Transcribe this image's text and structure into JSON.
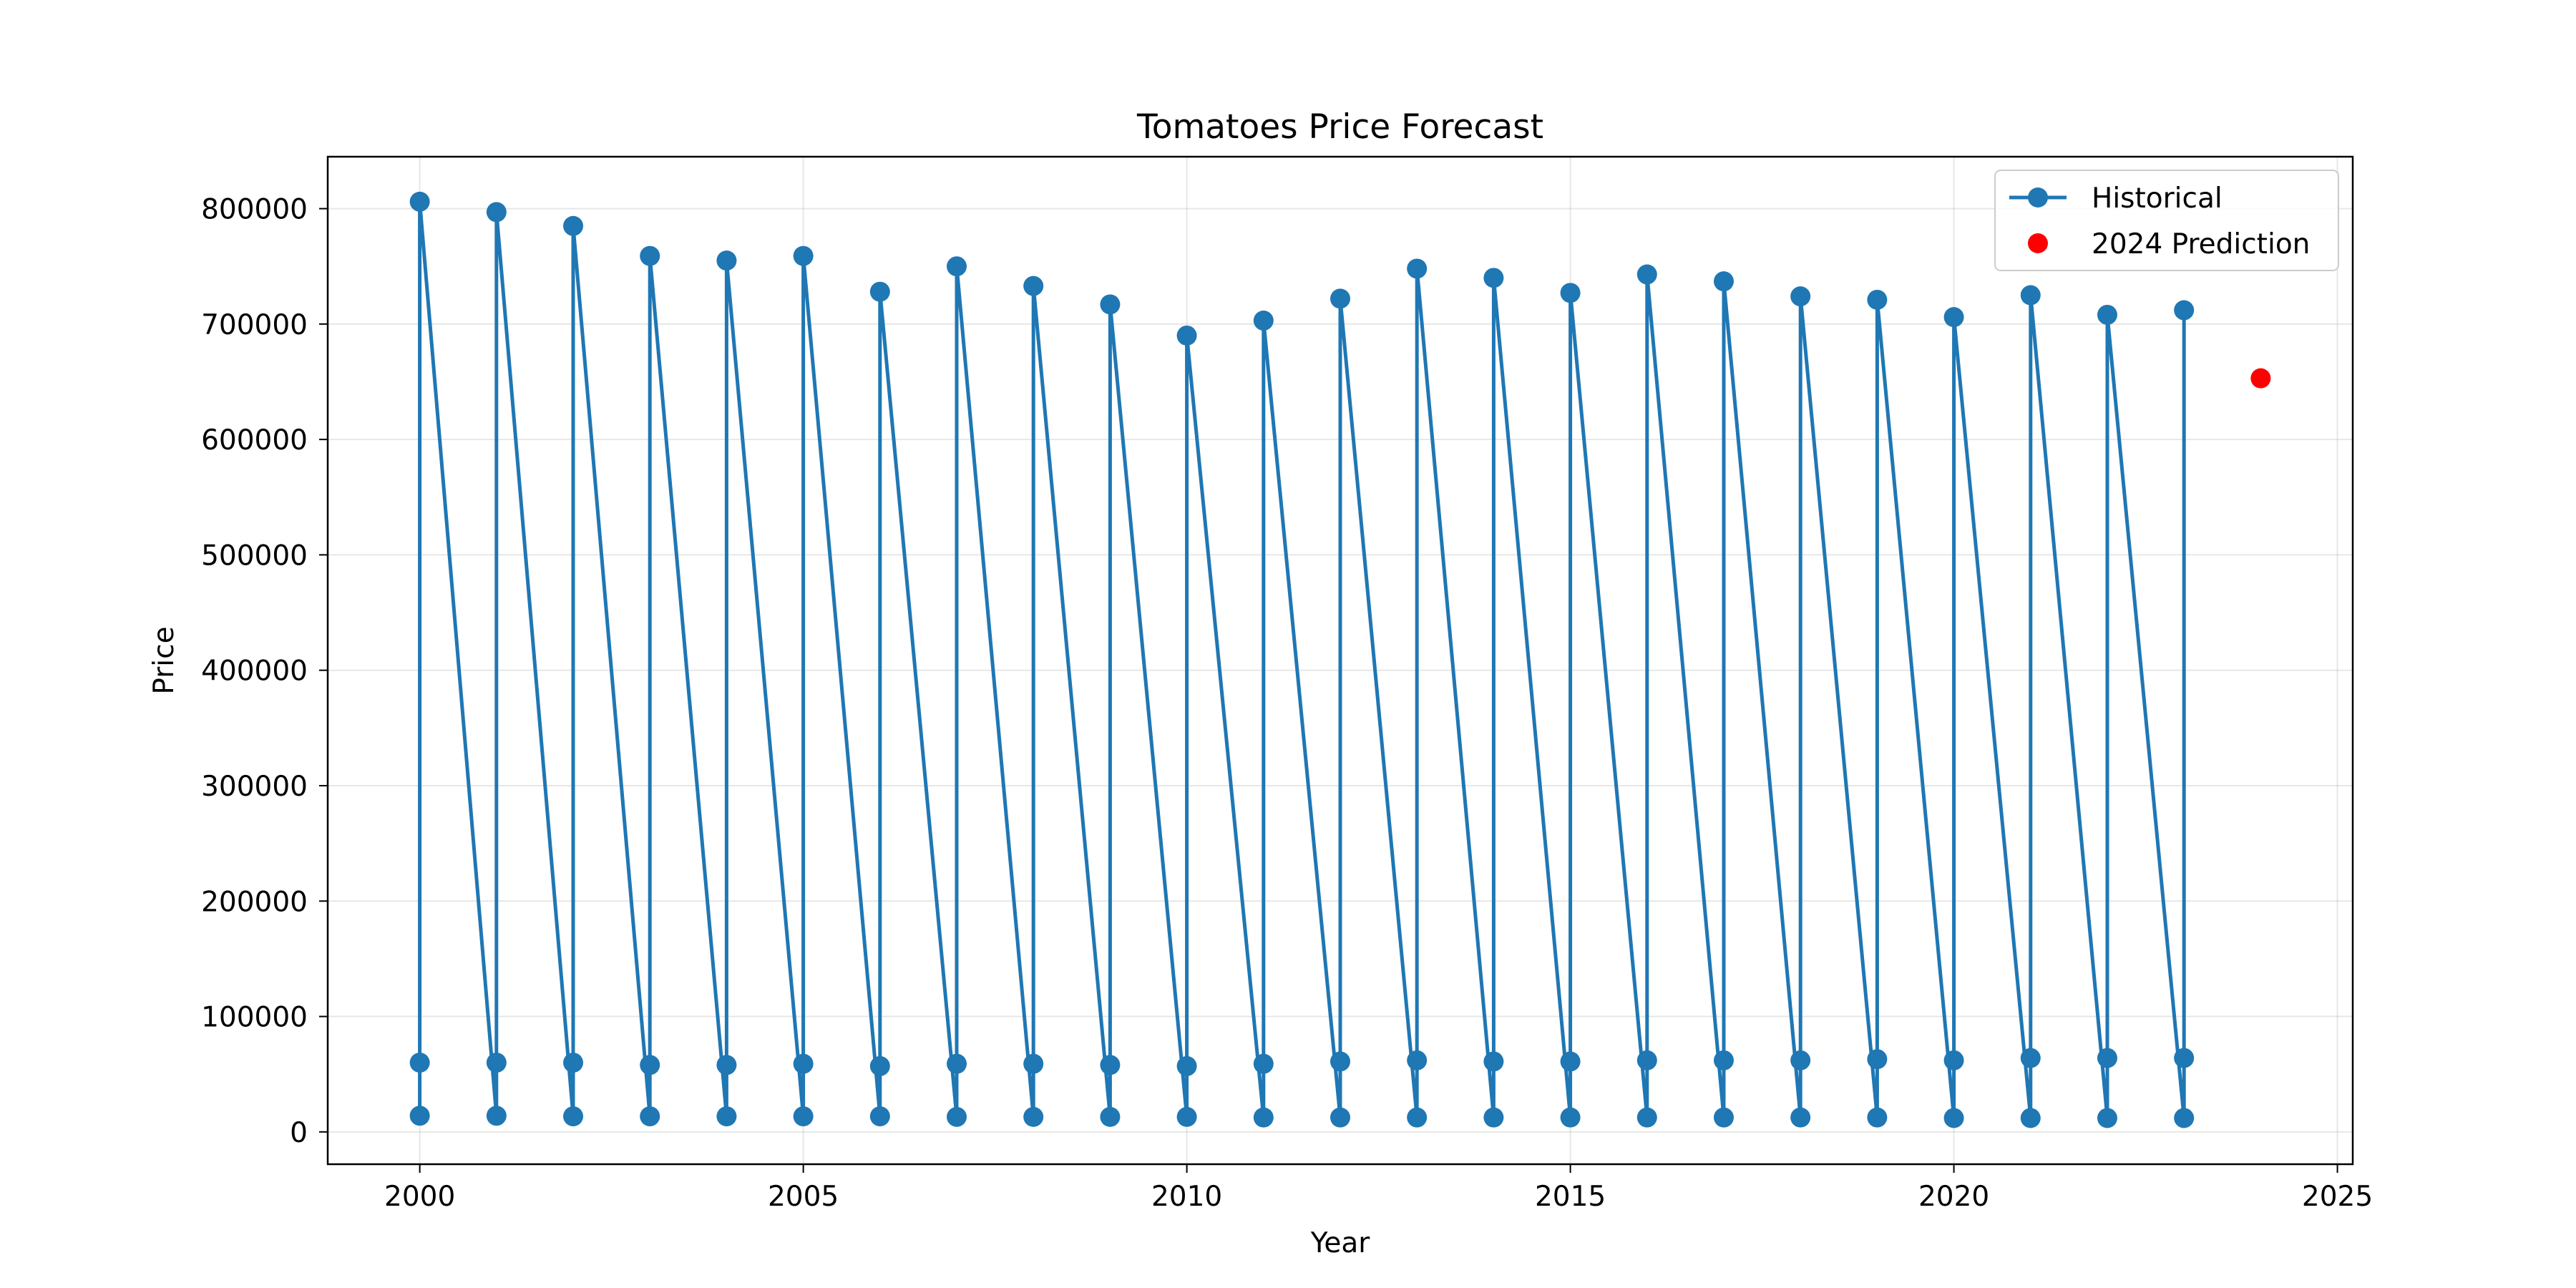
{
  "chart_data": {
    "type": "line",
    "title": "Tomatoes Price Forecast",
    "xlabel": "Year",
    "ylabel": "Price",
    "xlim": [
      1998.8,
      2025.2
    ],
    "ylim": [
      -28000,
      845000
    ],
    "x_ticks": [
      2000,
      2005,
      2010,
      2015,
      2020,
      2025
    ],
    "y_ticks": [
      0,
      100000,
      200000,
      300000,
      400000,
      500000,
      600000,
      700000,
      800000
    ],
    "grid": true,
    "legend_position": "top-right",
    "series": [
      {
        "name": "Historical",
        "style": "line-with-markers",
        "color": "#1f77b4",
        "points": [
          [
            2000,
            14000
          ],
          [
            2000,
            60000
          ],
          [
            2000,
            806000
          ],
          [
            2001,
            14000
          ],
          [
            2001,
            60000
          ],
          [
            2001,
            797000
          ],
          [
            2002,
            13500
          ],
          [
            2002,
            60000
          ],
          [
            2002,
            785000
          ],
          [
            2003,
            13500
          ],
          [
            2003,
            58000
          ],
          [
            2003,
            759000
          ],
          [
            2004,
            13500
          ],
          [
            2004,
            58000
          ],
          [
            2004,
            755000
          ],
          [
            2005,
            13500
          ],
          [
            2005,
            59000
          ],
          [
            2005,
            759000
          ],
          [
            2006,
            13500
          ],
          [
            2006,
            57000
          ],
          [
            2006,
            728000
          ],
          [
            2007,
            13000
          ],
          [
            2007,
            59000
          ],
          [
            2007,
            750000
          ],
          [
            2008,
            13000
          ],
          [
            2008,
            59000
          ],
          [
            2008,
            733000
          ],
          [
            2009,
            13000
          ],
          [
            2009,
            58000
          ],
          [
            2009,
            717000
          ],
          [
            2010,
            13000
          ],
          [
            2010,
            57000
          ],
          [
            2010,
            690000
          ],
          [
            2011,
            12500
          ],
          [
            2011,
            59000
          ],
          [
            2011,
            703000
          ],
          [
            2012,
            12500
          ],
          [
            2012,
            61000
          ],
          [
            2012,
            722000
          ],
          [
            2013,
            12500
          ],
          [
            2013,
            62000
          ],
          [
            2013,
            748000
          ],
          [
            2014,
            12500
          ],
          [
            2014,
            61000
          ],
          [
            2014,
            740000
          ],
          [
            2015,
            12500
          ],
          [
            2015,
            61000
          ],
          [
            2015,
            727000
          ],
          [
            2016,
            12500
          ],
          [
            2016,
            62000
          ],
          [
            2016,
            743000
          ],
          [
            2017,
            12500
          ],
          [
            2017,
            62000
          ],
          [
            2017,
            737000
          ],
          [
            2018,
            12500
          ],
          [
            2018,
            62000
          ],
          [
            2018,
            724000
          ],
          [
            2019,
            12500
          ],
          [
            2019,
            63000
          ],
          [
            2019,
            721000
          ],
          [
            2020,
            12000
          ],
          [
            2020,
            62000
          ],
          [
            2020,
            706000
          ],
          [
            2021,
            12000
          ],
          [
            2021,
            64000
          ],
          [
            2021,
            725000
          ],
          [
            2022,
            12000
          ],
          [
            2022,
            64000
          ],
          [
            2022,
            708000
          ],
          [
            2023,
            12000
          ],
          [
            2023,
            64000
          ],
          [
            2023,
            712000
          ]
        ]
      },
      {
        "name": "2024 Prediction",
        "style": "marker-only",
        "color": "#ff0000",
        "points": [
          [
            2024,
            653000
          ]
        ]
      }
    ]
  }
}
